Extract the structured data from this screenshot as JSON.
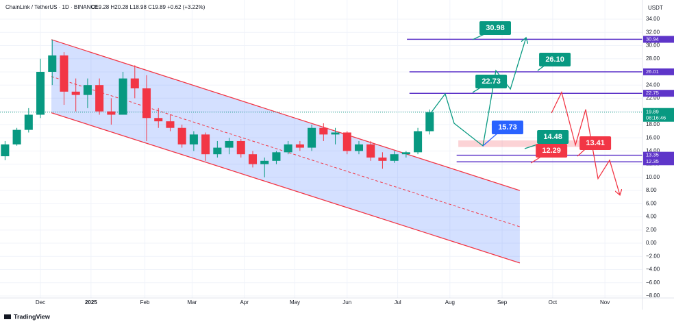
{
  "header": {
    "symbol": "ChainLink / TetherUS · 1D · BINANCE",
    "ohlc": "O19.28 H20.28 L18.98 C19.89 +0.62 (+3.22%)"
  },
  "brand": "TradingView",
  "chart_data": {
    "type": "candlestick",
    "currency": "USDT",
    "x": [
      -21,
      -14,
      -7,
      0,
      7,
      14,
      21,
      28,
      35,
      42,
      49,
      56,
      63,
      70,
      77,
      84,
      91,
      98,
      105,
      112,
      119,
      126,
      133,
      140,
      147,
      154,
      161,
      168,
      175,
      182,
      189,
      196,
      203,
      210,
      217,
      224,
      231
    ],
    "open": [
      13.2,
      15,
      17.2,
      19.5,
      26,
      28.5,
      23,
      22.5,
      24,
      20,
      19.5,
      25,
      23.5,
      19,
      18.5,
      17.5,
      15,
      16.5,
      13.5,
      14.5,
      15.5,
      13.5,
      12,
      12.5,
      13.8,
      15,
      14.5,
      17.5,
      16.5,
      16.8,
      14,
      15,
      13,
      12.5,
      13.5,
      13.8,
      17
    ],
    "high": [
      15.5,
      17.5,
      20.5,
      28,
      30.9,
      29,
      25,
      25,
      25,
      22,
      26,
      27,
      25.5,
      20.5,
      19.5,
      18,
      17,
      16.8,
      15.5,
      16,
      15.8,
      14,
      13,
      14,
      15.5,
      15.5,
      18,
      18.2,
      17.5,
      17,
      15.5,
      15.5,
      13.8,
      14,
      14,
      17.5,
      20.3
    ],
    "low": [
      12.6,
      14.8,
      16.8,
      19,
      24,
      21,
      20,
      20.5,
      19.5,
      18,
      19.5,
      22,
      15.5,
      17.5,
      17,
      14.5,
      14,
      12.5,
      13,
      13.5,
      13,
      11.5,
      10,
      12,
      13.5,
      14,
      14,
      15.5,
      15,
      13.5,
      13.5,
      12.5,
      11.3,
      12.2,
      13,
      13.5,
      16.5
    ],
    "close": [
      15,
      17.2,
      19.5,
      26,
      28.5,
      23,
      22.5,
      24,
      20,
      19.5,
      25,
      23.5,
      19,
      18.5,
      17.5,
      15,
      16.5,
      13.5,
      14.5,
      15.5,
      13.5,
      12,
      12.5,
      13.8,
      15,
      14.5,
      17.5,
      16.5,
      16.8,
      14,
      15,
      13,
      12.5,
      13.5,
      13.8,
      17,
      19.89
    ],
    "up_color": "#089981",
    "down_color": "#f23645",
    "xlim": [
      -24,
      357.3
    ],
    "ylim": [
      -8.31,
      36.91
    ],
    "xticks": [
      {
        "value": 0,
        "label": "Dec"
      },
      {
        "value": 30,
        "label": "2025"
      },
      {
        "value": 62,
        "label": "Feb"
      },
      {
        "value": 90,
        "label": "Mar"
      },
      {
        "value": 121,
        "label": "Apr"
      },
      {
        "value": 151,
        "label": "May"
      },
      {
        "value": 182,
        "label": "Jun"
      },
      {
        "value": 212,
        "label": "Jul"
      },
      {
        "value": 243,
        "label": "Aug"
      },
      {
        "value": 274,
        "label": "Sep"
      },
      {
        "value": 304,
        "label": "Oct"
      },
      {
        "value": 335,
        "label": "Nov"
      }
    ],
    "yticks": [
      {
        "value": 34,
        "label": "34.00"
      },
      {
        "value": 32,
        "label": "32.00"
      },
      {
        "value": 30,
        "label": "30.00"
      },
      {
        "value": 28,
        "label": "28.00"
      },
      {
        "value": 26,
        "label": "26.00"
      },
      {
        "value": 24,
        "label": "24.00"
      },
      {
        "value": 22,
        "label": "22.00"
      },
      {
        "value": 20,
        "label": "20.00"
      },
      {
        "value": 18,
        "label": "18.00"
      },
      {
        "value": 16,
        "label": "16.00"
      },
      {
        "value": 14,
        "label": "14.00"
      },
      {
        "value": 12,
        "label": "12.00"
      },
      {
        "value": 10,
        "label": "10.00"
      },
      {
        "value": 8,
        "label": "8.00"
      },
      {
        "value": 6,
        "label": "6.00"
      },
      {
        "value": 4,
        "label": "4.00"
      },
      {
        "value": 2,
        "label": "2.00"
      },
      {
        "value": 0,
        "label": "0.00"
      },
      {
        "value": -2,
        "label": "−2.00"
      },
      {
        "value": -4,
        "label": "−4.00"
      },
      {
        "value": -6,
        "label": "−6.00"
      },
      {
        "value": -8,
        "label": "−8.00"
      }
    ],
    "grid": true,
    "channel": {
      "x": [
        6.5,
        284.5
      ],
      "upper": [
        30.9,
        8
      ],
      "middle": [
        25.3,
        2.5
      ],
      "lower": [
        19.8,
        -3
      ],
      "color": "#f23645",
      "fill": "rgba(41,98,255,0.2)"
    },
    "levels": [
      {
        "value": 30.94,
        "label": "30.94",
        "x": [
          217.5,
          357.3
        ]
      },
      {
        "value": 26.01,
        "label": "26.01",
        "x": [
          219,
          357.3
        ]
      },
      {
        "value": 22.75,
        "label": "22.75",
        "x": [
          219,
          357.3
        ]
      },
      {
        "value": 13.35,
        "label": "13.35",
        "x": [
          247,
          357.3
        ]
      },
      {
        "value": 12.35,
        "label": "12.35",
        "x": [
          247,
          357.3
        ]
      }
    ],
    "level_color": "#5e35c9",
    "zone": {
      "low": 14.6,
      "high": 15.6,
      "x": [
        248,
        327
      ],
      "color": "rgba(242,54,69,0.22)"
    },
    "last_price": {
      "value": 19.89,
      "label": "19.89",
      "countdown": "08:16:46",
      "color": "#089981"
    },
    "projections": [
      {
        "color": "#089981",
        "x": [
          232.1,
          240.2,
          245.5,
          262.6,
          270.3,
          278.9,
          288.2
        ],
        "y": [
          19.9,
          22.67,
          18.2,
          14.77,
          26.2,
          23.4,
          31.2
        ]
      },
      {
        "color": "#f23645",
        "x": [
          303.3,
          309.3,
          317.5,
          323.6,
          330.9,
          337.8,
          343.9
        ],
        "y": [
          19.76,
          22.9,
          14.9,
          20.3,
          9.8,
          12.6,
          7.3
        ]
      }
    ],
    "annotations": [
      {
        "text": "30.98",
        "color": "#089981",
        "at": [
          269.9,
          32.65
        ],
        "target": [
          256.5,
          30.9
        ]
      },
      {
        "text": "26.10",
        "color": "#089981",
        "at": [
          305.3,
          27.87
        ],
        "target": [
          295.1,
          26.2
        ]
      },
      {
        "text": "22.73",
        "color": "#089981",
        "at": [
          267.5,
          24.54
        ],
        "target": [
          256.5,
          22.88
        ]
      },
      {
        "text": "15.73",
        "color": "#2962ff",
        "at": [
          277.2,
          17.58
        ],
        "target": [
          262.6,
          14.77
        ]
      },
      {
        "text": "14.48",
        "color": "#089981",
        "at": [
          304.1,
          16.12
        ],
        "target": [
          287.4,
          14.35
        ]
      },
      {
        "text": "12.29",
        "color": "#f23645",
        "at": [
          303.3,
          14.04
        ],
        "target": [
          291.1,
          12.17
        ]
      },
      {
        "text": "13.41",
        "color": "#f23645",
        "at": [
          329.3,
          15.18
        ],
        "target": [
          318.7,
          13.2
        ]
      }
    ]
  }
}
